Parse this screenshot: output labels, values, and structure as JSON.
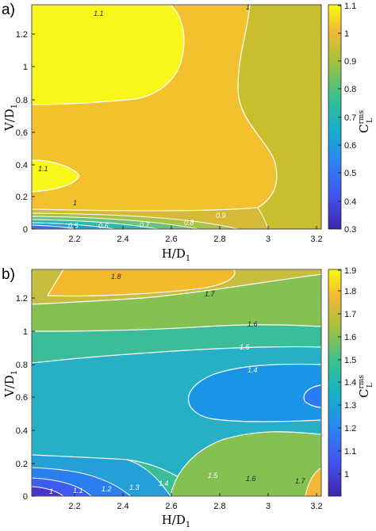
{
  "panels": [
    {
      "label": "a)",
      "xlabel": "H/D",
      "xlabel_sub": "1",
      "ylabel": "V/D",
      "ylabel_sub": "1",
      "colorbar_label": "C",
      "colorbar_sup": "rms",
      "colorbar_sub": "L",
      "xticks": [
        "2.2",
        "2.4",
        "2.6",
        "2.8",
        "3",
        "3.2"
      ],
      "yticks": [
        "0",
        "0.2",
        "0.4",
        "0.6",
        "0.8",
        "1",
        "1.2"
      ],
      "cticks": [
        "0.3",
        "0.4",
        "0.5",
        "0.6",
        "0.7",
        "0.8",
        "0.9",
        "1",
        "1.1"
      ],
      "contour_labels": [
        "1.1",
        "1",
        "1.1",
        "1",
        "0.9",
        "0.8",
        "0.7",
        "0.6",
        "0.5"
      ]
    },
    {
      "label": "b)",
      "xlabel": "H/D",
      "xlabel_sub": "1",
      "ylabel": "V/D",
      "ylabel_sub": "1",
      "colorbar_label": "C",
      "colorbar_sup": "rms",
      "colorbar_sub": "L",
      "xticks": [
        "2.2",
        "2.4",
        "2.6",
        "2.8",
        "3",
        "3.2"
      ],
      "yticks": [
        "0",
        "0.2",
        "0.4",
        "0.6",
        "0.8",
        "1",
        "1.2"
      ],
      "cticks": [
        "1",
        "1.1",
        "1.2",
        "1.3",
        "1.4",
        "1.5",
        "1.6",
        "1.7",
        "1.8",
        "1.9"
      ],
      "contour_labels": [
        "1.8",
        "1.7",
        "1.6",
        "1.5",
        "1.4",
        "1.6",
        "1.7",
        "1.5",
        "1.4",
        "1.3",
        "1.2",
        "1.1",
        "1"
      ]
    }
  ],
  "chart_data": [
    {
      "type": "heatmap",
      "subtype": "filled-contour",
      "panel": "a)",
      "xlabel": "H/D1",
      "ylabel": "V/D1",
      "colorbar": "C_L^rms",
      "xlim": [
        2.05,
        3.25
      ],
      "ylim": [
        0,
        1.37
      ],
      "clim": [
        0.3,
        1.1
      ],
      "colormap": "parula",
      "contour_levels": [
        0.5,
        0.6,
        0.7,
        0.8,
        0.9,
        1.0,
        1.1
      ],
      "regions": [
        {
          "level": "> 1.1",
          "x_range": [
            2.05,
            2.55
          ],
          "y_range": [
            0.85,
            1.37
          ]
        },
        {
          "level": "> 1.1",
          "x_range": [
            2.05,
            2.25
          ],
          "y_range": [
            0.25,
            0.42
          ]
        },
        {
          "level": "1.0 - 1.1",
          "x_range": [
            2.05,
            3.05
          ],
          "y_range": [
            0.15,
            1.37
          ]
        },
        {
          "level": "< 0.9",
          "x_range": [
            2.05,
            3.0
          ],
          "y_range": [
            0,
            0.12
          ]
        }
      ]
    },
    {
      "type": "heatmap",
      "subtype": "filled-contour",
      "panel": "b)",
      "xlabel": "H/D1",
      "ylabel": "V/D1",
      "colorbar": "C_L^rms",
      "xlim": [
        2.05,
        3.25
      ],
      "ylim": [
        0,
        1.37
      ],
      "clim": [
        0.92,
        1.9
      ],
      "colormap": "parula",
      "contour_levels": [
        1.0,
        1.1,
        1.2,
        1.3,
        1.4,
        1.5,
        1.6,
        1.7,
        1.8
      ],
      "regions": [
        {
          "level": "> 1.8",
          "x_range": [
            2.15,
            2.65
          ],
          "y_range": [
            1.28,
            1.37
          ]
        },
        {
          "level": "< 1.4",
          "x_range": [
            2.75,
            3.25
          ],
          "y_range": [
            0.38,
            0.82
          ]
        },
        {
          "level": "< 1.2",
          "x_range": [
            2.05,
            2.6
          ],
          "y_range": [
            0,
            0.12
          ]
        },
        {
          "level": "> 1.7",
          "x_range": [
            3.15,
            3.25
          ],
          "y_range": [
            0,
            0.1
          ]
        }
      ]
    }
  ]
}
